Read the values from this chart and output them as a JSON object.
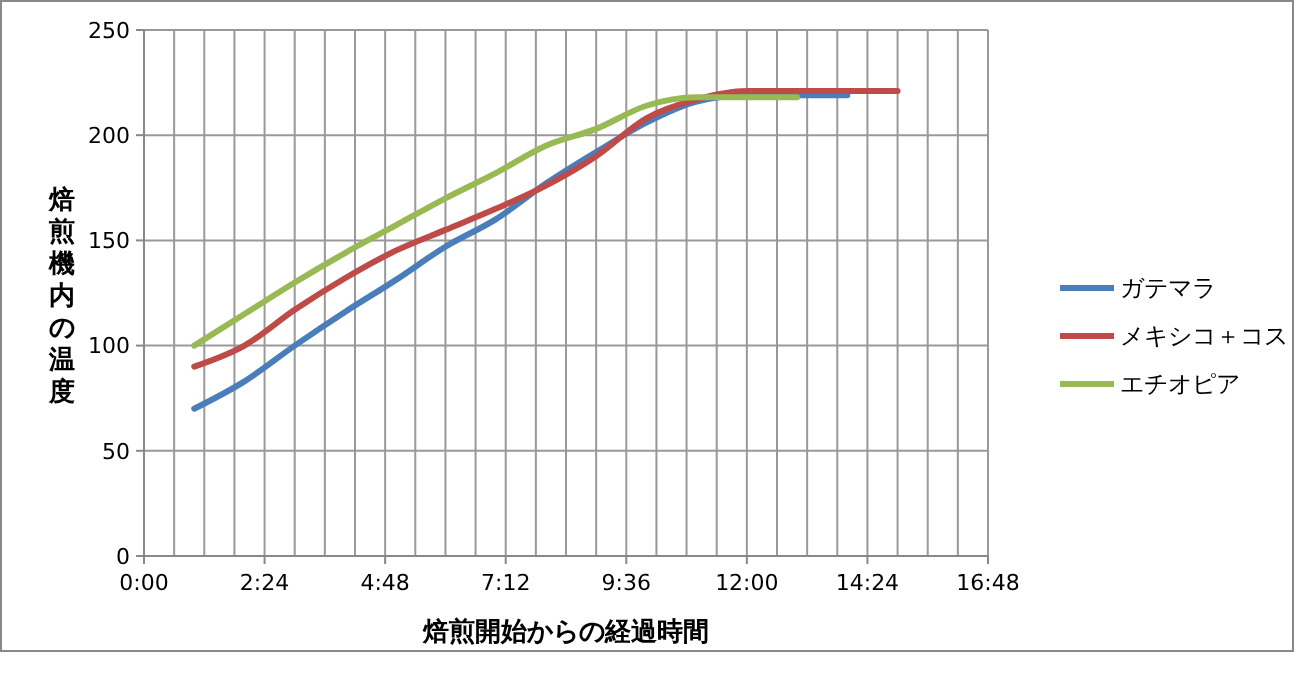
{
  "chart_data": {
    "type": "line",
    "xlabel": "焙煎開始からの経過時間",
    "ylabel": "焙煎機内の温度",
    "x": [
      1,
      2,
      3,
      4,
      5,
      6,
      7,
      8,
      9,
      10,
      11,
      12,
      13,
      14,
      15
    ],
    "series": [
      {
        "name": "ガテマラ",
        "color": "#4a7ebb",
        "values": [
          70,
          83,
          100,
          116,
          131,
          147,
          160,
          177,
          192,
          206,
          216,
          219,
          219,
          219,
          null
        ]
      },
      {
        "name": "メキシコ＋コス",
        "color": "#be4b48",
        "values": [
          90,
          100,
          117,
          132,
          145,
          155,
          165,
          176,
          190,
          208,
          217,
          221,
          221,
          221,
          221
        ]
      },
      {
        "name": "エチオピア",
        "color": "#98b954",
        "values": [
          100,
          115,
          130,
          144,
          157,
          170,
          182,
          195,
          203,
          214,
          218,
          218,
          218,
          null,
          null
        ]
      }
    ],
    "xlim": [
      0,
      16.8
    ],
    "xticks": [
      {
        "value": 0,
        "label": "0:00"
      },
      {
        "value": 0.6,
        "label": null
      },
      {
        "value": 1.2,
        "label": null
      },
      {
        "value": 1.8,
        "label": null
      },
      {
        "value": 2.4,
        "label": "2:24"
      },
      {
        "value": 3,
        "label": null
      },
      {
        "value": 3.6,
        "label": null
      },
      {
        "value": 4.2,
        "label": null
      },
      {
        "value": 4.8,
        "label": "4:48"
      },
      {
        "value": 5.4,
        "label": null
      },
      {
        "value": 6,
        "label": null
      },
      {
        "value": 6.6,
        "label": null
      },
      {
        "value": 7.2,
        "label": "7:12"
      },
      {
        "value": 7.8,
        "label": null
      },
      {
        "value": 8.4,
        "label": null
      },
      {
        "value": 9,
        "label": null
      },
      {
        "value": 9.6,
        "label": "9:36"
      },
      {
        "value": 10.2,
        "label": null
      },
      {
        "value": 10.8,
        "label": null
      },
      {
        "value": 11.4,
        "label": null
      },
      {
        "value": 12,
        "label": "12:00"
      },
      {
        "value": 12.6,
        "label": null
      },
      {
        "value": 13.2,
        "label": null
      },
      {
        "value": 13.8,
        "label": null
      },
      {
        "value": 14.4,
        "label": "14:24"
      },
      {
        "value": 15,
        "label": null
      },
      {
        "value": 15.6,
        "label": null
      },
      {
        "value": 16.2,
        "label": null
      },
      {
        "value": 16.8,
        "label": "16:48"
      }
    ],
    "ylim": [
      0,
      250
    ],
    "yticks": [
      0,
      50,
      100,
      150,
      200,
      250
    ],
    "grid": true,
    "legend": "right",
    "marker": "none",
    "line_style": "solid"
  }
}
